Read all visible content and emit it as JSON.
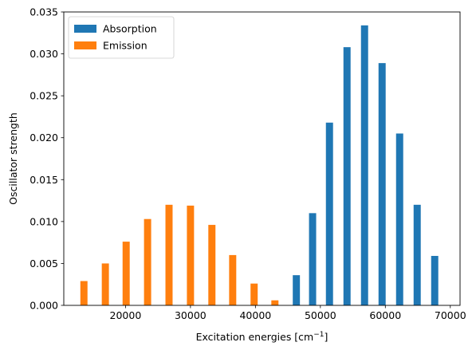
{
  "chart_data": {
    "type": "bar",
    "title": "",
    "xlabel": "Excitation energies [cm",
    "xlabel_sup": "−1",
    "xlabel_suffix": "]",
    "ylabel": "Oscillator strength",
    "xlim": [
      10500,
      71500
    ],
    "ylim": [
      0,
      0.035
    ],
    "bar_width": 1100,
    "xticks": [
      20000,
      30000,
      40000,
      50000,
      60000,
      70000
    ],
    "xtick_labels": [
      "20000",
      "30000",
      "40000",
      "50000",
      "60000",
      "70000"
    ],
    "yticks": [
      0,
      0.005,
      0.01,
      0.015,
      0.02,
      0.025,
      0.03,
      0.035
    ],
    "ytick_labels": [
      "0.000",
      "0.005",
      "0.010",
      "0.015",
      "0.020",
      "0.025",
      "0.030",
      "0.035"
    ],
    "legend_position": "upper-left",
    "series": [
      {
        "name": "Absorption",
        "color": "#1f77b4",
        "x": [
          46300,
          48800,
          51400,
          54100,
          56800,
          59500,
          62200,
          64900,
          67600
        ],
        "values": [
          0.0036,
          0.011,
          0.0218,
          0.0308,
          0.0334,
          0.0289,
          0.0205,
          0.012,
          0.0059
        ]
      },
      {
        "name": "Emission",
        "color": "#ff7f0e",
        "x": [
          13600,
          16900,
          20100,
          23400,
          26700,
          30000,
          33300,
          36500,
          39800,
          43000
        ],
        "values": [
          0.0029,
          0.005,
          0.0076,
          0.0103,
          0.012,
          0.0119,
          0.0096,
          0.006,
          0.0026,
          0.0006
        ]
      }
    ]
  }
}
